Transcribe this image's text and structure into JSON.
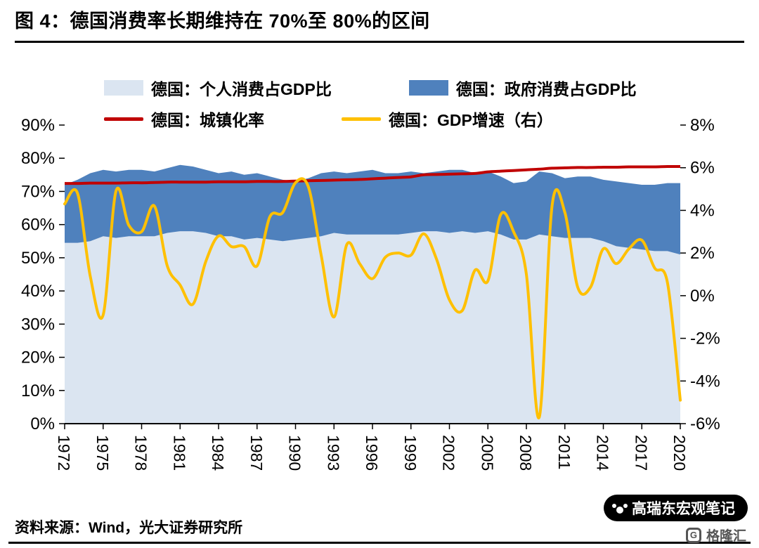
{
  "page": {
    "title": "图 4：德国消费率长期维持在 70%至 80%的区间",
    "source": "资料来源：Wind，光大证券研究所",
    "watermark": {
      "badge_text": "高瑞东宏观笔记",
      "logo_mark": "G",
      "logo_text": "格隆汇"
    }
  },
  "chart_data": {
    "type": "combo",
    "title": "图 4：德国消费率长期维持在 70%至 80%的区间",
    "legend_position": "top",
    "grid": false,
    "x": [
      1972,
      1973,
      1974,
      1975,
      1976,
      1977,
      1978,
      1979,
      1980,
      1981,
      1982,
      1983,
      1984,
      1985,
      1986,
      1987,
      1988,
      1989,
      1990,
      1991,
      1992,
      1993,
      1994,
      1995,
      1996,
      1997,
      1998,
      1999,
      2000,
      2001,
      2002,
      2003,
      2004,
      2005,
      2006,
      2007,
      2008,
      2009,
      2010,
      2011,
      2012,
      2013,
      2014,
      2015,
      2016,
      2017,
      2018,
      2019,
      2020
    ],
    "x_ticks": [
      "1972",
      "1975",
      "1978",
      "1981",
      "1984",
      "1987",
      "1990",
      "1993",
      "1996",
      "1999",
      "2002",
      "2005",
      "2008",
      "2011",
      "2014",
      "2017",
      "2020"
    ],
    "left_axis": {
      "min": 0,
      "max": 90,
      "step": 10,
      "tick_labels": [
        "90%",
        "80%",
        "70%",
        "60%",
        "50%",
        "40%",
        "30%",
        "20%",
        "10%",
        "0%"
      ]
    },
    "right_axis": {
      "min": -6,
      "max": 8,
      "step": 2,
      "tick_labels": [
        "8%",
        "6%",
        "4%",
        "2%",
        "0%",
        "-2%",
        "-4%",
        "-6%"
      ]
    },
    "series": [
      {
        "name": "德国：个人消费占GDP比",
        "type": "area",
        "axis": "left",
        "color": "#dbe5f1",
        "values": [
          54.5,
          54.5,
          55,
          56.5,
          56,
          56.5,
          56.5,
          56.5,
          57.5,
          58,
          58,
          57.5,
          56.5,
          56.5,
          55.5,
          56,
          55.5,
          55,
          55.5,
          56,
          56.5,
          57.5,
          57,
          57,
          57,
          57,
          57,
          57.5,
          58,
          58,
          57.5,
          58,
          57.5,
          58,
          57,
          55.5,
          55.5,
          57,
          56.5,
          56,
          56,
          56,
          55,
          53.5,
          53,
          52.5,
          52,
          52,
          51
        ]
      },
      {
        "name": "德国：政府消费占GDP比",
        "type": "area-stacked",
        "axis": "left",
        "color": "#4f81bd",
        "values": [
          17.5,
          19,
          20.5,
          20,
          20,
          20,
          20,
          19.5,
          19.5,
          20,
          19.5,
          19,
          19,
          19.5,
          19.5,
          19.5,
          19,
          18.5,
          17.5,
          18,
          19,
          18.5,
          18.5,
          19,
          19.5,
          18.5,
          18.5,
          18.5,
          17.5,
          18,
          19,
          18.5,
          18,
          18,
          17.5,
          17,
          17.5,
          19,
          19,
          18,
          18.5,
          18.5,
          18.5,
          19.5,
          19.5,
          19.5,
          20,
          20.5,
          21.5
        ]
      },
      {
        "name": "德国：城镇化率",
        "type": "line",
        "axis": "left",
        "color": "#c00000",
        "values": [
          72.4,
          72.4,
          72.5,
          72.5,
          72.5,
          72.6,
          72.6,
          72.7,
          72.8,
          72.8,
          72.8,
          72.8,
          72.9,
          72.9,
          72.9,
          73,
          73,
          73,
          73.1,
          73.2,
          73.3,
          73.4,
          73.5,
          73.6,
          73.8,
          74,
          74.2,
          74.4,
          75,
          75.1,
          75.2,
          75.3,
          75.4,
          75.9,
          76.1,
          76.3,
          76.5,
          76.7,
          77,
          77.1,
          77.2,
          77.2,
          77.3,
          77.3,
          77.4,
          77.4,
          77.4,
          77.5,
          77.5
        ]
      },
      {
        "name": "德国：GDP增速（右）",
        "type": "line",
        "axis": "right",
        "color": "#ffc000",
        "values": [
          4.3,
          4.8,
          0.9,
          -0.9,
          4.9,
          3.3,
          3.0,
          4.2,
          1.4,
          0.5,
          -0.4,
          1.6,
          2.8,
          2.3,
          2.3,
          1.4,
          3.7,
          3.9,
          5.3,
          5.1,
          1.9,
          -1.0,
          2.4,
          1.5,
          0.8,
          1.8,
          2.0,
          1.9,
          2.9,
          1.7,
          -0.2,
          -0.7,
          1.2,
          0.7,
          3.8,
          3.0,
          1.0,
          -5.7,
          4.2,
          3.9,
          0.4,
          0.4,
          2.2,
          1.5,
          2.2,
          2.6,
          1.3,
          0.6,
          -4.9
        ]
      }
    ]
  }
}
